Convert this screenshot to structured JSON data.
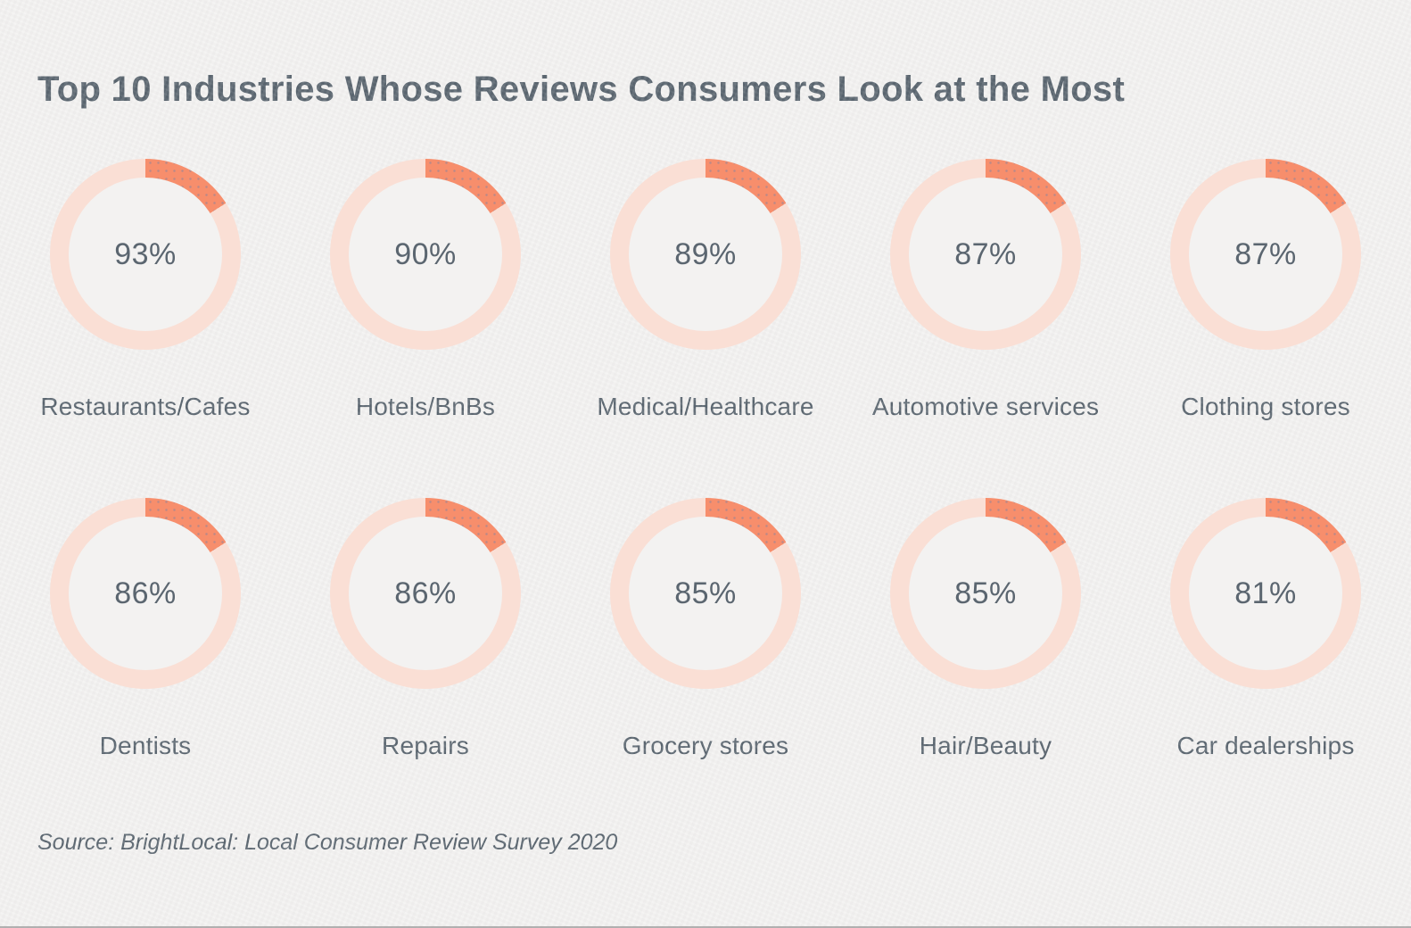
{
  "page": {
    "title": "Top 10 Industries Whose Reviews Consumers Look at the Most",
    "source": "Source: BrightLocal: Local Consumer Review Survey 2020"
  },
  "theme": {
    "css_vars": {
      "bg": "#f3f2f1",
      "text": "#5b6670",
      "accent": "#f78e6c",
      "ring": "#fadfd5",
      "arc": "16%",
      "edge": "#9b9b9b"
    }
  },
  "chart_data": {
    "type": "pie",
    "variant": "donut-grid",
    "title": "Top 10 Industries Whose Reviews Consumers Look at the Most",
    "unit": "%",
    "legend": "none",
    "layout": "2 rows x 5 columns of donut rings, value centered in each ring, category label below",
    "accent_arc_fraction_display": 0.16,
    "note": "orange arc segment is a fixed decorative wedge starting at 12 o'clock; the percentage is conveyed by the center text",
    "categories": [
      "Restaurants/Cafes",
      "Hotels/BnBs",
      "Medical/Healthcare",
      "Automotive services",
      "Clothing stores",
      "Dentists",
      "Repairs",
      "Grocery stores",
      "Hair/Beauty",
      "Car dealerships"
    ],
    "values": [
      93,
      90,
      89,
      87,
      87,
      86,
      86,
      85,
      85,
      81
    ],
    "items": [
      {
        "label": "Restaurants/Cafes",
        "value": 93,
        "value_label": "93%"
      },
      {
        "label": "Hotels/BnBs",
        "value": 90,
        "value_label": "90%"
      },
      {
        "label": "Medical/Healthcare",
        "value": 89,
        "value_label": "89%"
      },
      {
        "label": "Automotive services",
        "value": 87,
        "value_label": "87%"
      },
      {
        "label": "Clothing stores",
        "value": 87,
        "value_label": "87%"
      },
      {
        "label": "Dentists",
        "value": 86,
        "value_label": "86%"
      },
      {
        "label": "Repairs",
        "value": 86,
        "value_label": "86%"
      },
      {
        "label": "Grocery stores",
        "value": 85,
        "value_label": "85%"
      },
      {
        "label": "Hair/Beauty",
        "value": 85,
        "value_label": "85%"
      },
      {
        "label": "Car dealerships",
        "value": 81,
        "value_label": "81%"
      }
    ]
  }
}
